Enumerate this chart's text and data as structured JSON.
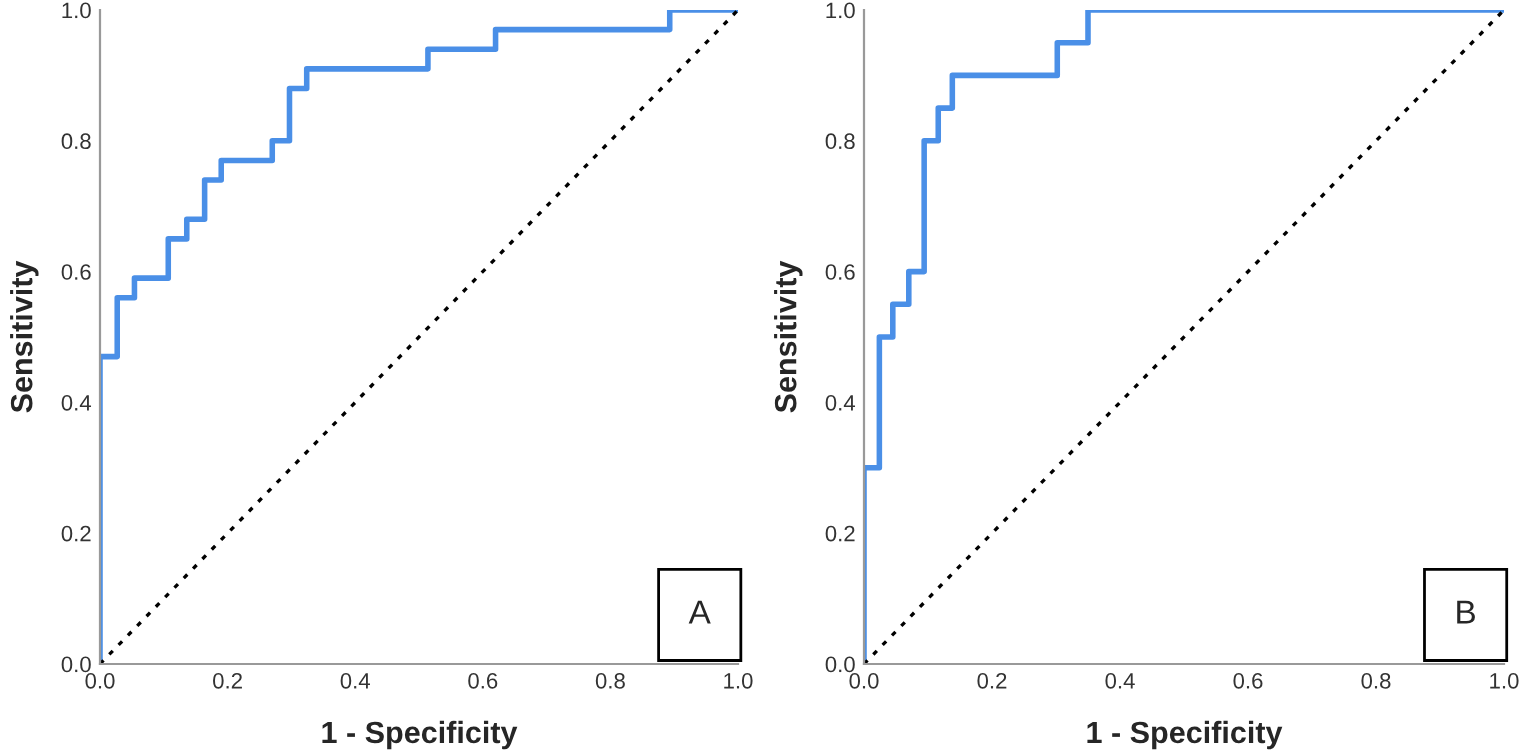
{
  "chart_data": [
    {
      "type": "step",
      "xlabel": "1 - Specificity",
      "ylabel": "Sensitivity",
      "xlim": [
        0,
        1
      ],
      "ylim": [
        0,
        1
      ],
      "xticks": [
        {
          "value": 0,
          "label": "0.0"
        },
        {
          "value": 0.2,
          "label": "0.2"
        },
        {
          "value": 0.4,
          "label": "0.4"
        },
        {
          "value": 0.6,
          "label": "0.6"
        },
        {
          "value": 0.8,
          "label": "0.8"
        },
        {
          "value": 1,
          "label": "1.0"
        }
      ],
      "yticks": [
        {
          "value": 0,
          "label": "0.0"
        },
        {
          "value": 0.2,
          "label": "0.2"
        },
        {
          "value": 0.4,
          "label": "0.4"
        },
        {
          "value": 0.6,
          "label": "0.6"
        },
        {
          "value": 0.8,
          "label": "0.8"
        },
        {
          "value": 1,
          "label": "1.0"
        }
      ],
      "grid": false,
      "legend": false,
      "annotations": [
        "A"
      ],
      "series": [
        {
          "color": "#4a8fe7",
          "x": [
            0,
            0,
            0.027,
            0.054,
            0.107,
            0.136,
            0.164,
            0.19,
            0.27,
            0.297,
            0.324,
            0.514,
            0.62,
            0.893,
            1.0
          ],
          "values": [
            0,
            0.47,
            0.56,
            0.59,
            0.65,
            0.68,
            0.74,
            0.77,
            0.8,
            0.88,
            0.91,
            0.94,
            0.97,
            1.0,
            1.0
          ]
        },
        {
          "type": "line",
          "color": "#000000",
          "line_style": "dotted",
          "x": [
            0,
            1
          ],
          "values": [
            0,
            1
          ]
        }
      ]
    },
    {
      "type": "step",
      "xlabel": "1 - Specificity",
      "ylabel": "Sensitivity",
      "xlim": [
        0,
        1
      ],
      "ylim": [
        0,
        1
      ],
      "xticks": [
        {
          "value": 0,
          "label": "0.0"
        },
        {
          "value": 0.2,
          "label": "0.2"
        },
        {
          "value": 0.4,
          "label": "0.4"
        },
        {
          "value": 0.6,
          "label": "0.6"
        },
        {
          "value": 0.8,
          "label": "0.8"
        },
        {
          "value": 1,
          "label": "1.0"
        }
      ],
      "yticks": [
        {
          "value": 0,
          "label": "0.0"
        },
        {
          "value": 0.2,
          "label": "0.2"
        },
        {
          "value": 0.4,
          "label": "0.4"
        },
        {
          "value": 0.6,
          "label": "0.6"
        },
        {
          "value": 0.8,
          "label": "0.8"
        },
        {
          "value": 1,
          "label": "1.0"
        }
      ],
      "grid": false,
      "legend": false,
      "annotations": [
        "B"
      ],
      "series": [
        {
          "color": "#4a8fe7",
          "x": [
            0,
            0,
            0.024,
            0.045,
            0.07,
            0.094,
            0.116,
            0.138,
            0.302,
            0.35,
            1.0
          ],
          "values": [
            0,
            0.3,
            0.5,
            0.55,
            0.6,
            0.8,
            0.85,
            0.9,
            0.95,
            1.0,
            1.0
          ]
        },
        {
          "type": "line",
          "color": "#000000",
          "line_style": "dotted",
          "x": [
            0,
            1
          ],
          "values": [
            0,
            1
          ]
        }
      ]
    }
  ]
}
